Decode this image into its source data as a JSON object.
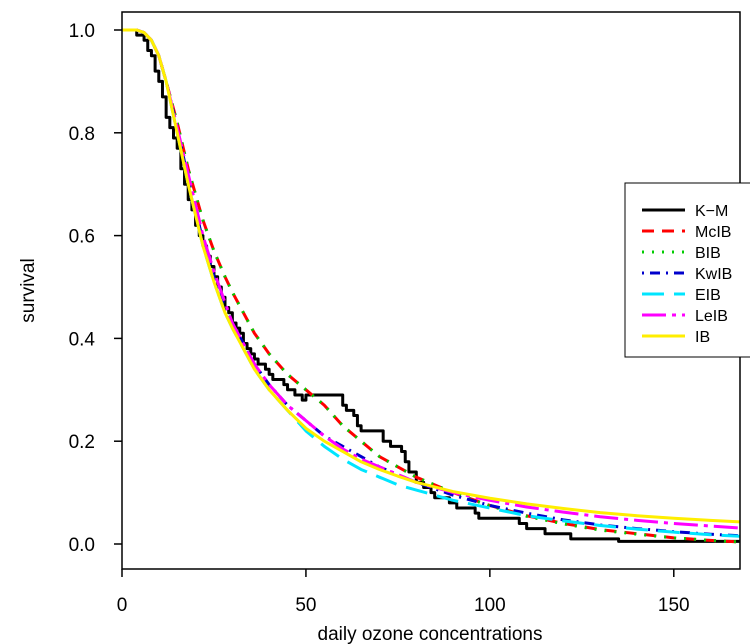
{
  "chart_data": {
    "type": "line",
    "title": "",
    "xlabel": "daily ozone concentrations",
    "ylabel": "survival",
    "xlim": [
      0,
      168
    ],
    "ylim": [
      0,
      1.0
    ],
    "x_ticks": [
      0,
      50,
      100,
      150
    ],
    "y_ticks": [
      0.0,
      0.2,
      0.4,
      0.6,
      0.8,
      1.0
    ],
    "x_tick_labels": [
      "0",
      "50",
      "100",
      "150"
    ],
    "y_tick_labels": [
      "0.0",
      "0.2",
      "0.4",
      "0.6",
      "0.8",
      "1.0"
    ],
    "grid": false,
    "legend_position": "right",
    "series": [
      {
        "name": "K−M",
        "color": "#000000",
        "dash": "solid",
        "step": true,
        "x": [
          0,
          4,
          6,
          7,
          8,
          9,
          10,
          11,
          12,
          13,
          14,
          15,
          16,
          17,
          18,
          19,
          20,
          21,
          22,
          23,
          24,
          25,
          26,
          27,
          28,
          29,
          30,
          31,
          32,
          33,
          34,
          35,
          36,
          37,
          39,
          40,
          41,
          44,
          45,
          46,
          47,
          48,
          49,
          50,
          52,
          55,
          59,
          60,
          61,
          63,
          64,
          65,
          66,
          67,
          71,
          73,
          76,
          77,
          78,
          80,
          82,
          84,
          85,
          89,
          91,
          96,
          97,
          108,
          110,
          115,
          118,
          122,
          135,
          168
        ],
        "y": [
          1.0,
          0.99,
          0.98,
          0.96,
          0.95,
          0.92,
          0.9,
          0.87,
          0.83,
          0.81,
          0.79,
          0.77,
          0.73,
          0.7,
          0.67,
          0.65,
          0.62,
          0.6,
          0.58,
          0.56,
          0.54,
          0.52,
          0.5,
          0.48,
          0.46,
          0.45,
          0.43,
          0.42,
          0.41,
          0.39,
          0.38,
          0.37,
          0.36,
          0.35,
          0.34,
          0.33,
          0.32,
          0.31,
          0.3,
          0.3,
          0.29,
          0.29,
          0.28,
          0.29,
          0.29,
          0.29,
          0.29,
          0.27,
          0.26,
          0.25,
          0.23,
          0.22,
          0.22,
          0.22,
          0.2,
          0.19,
          0.18,
          0.16,
          0.14,
          0.12,
          0.11,
          0.1,
          0.09,
          0.08,
          0.07,
          0.06,
          0.05,
          0.04,
          0.03,
          0.02,
          0.02,
          0.01,
          0.005,
          0.005
        ]
      },
      {
        "name": "McIB",
        "color": "#ff0000",
        "dash": "12,8",
        "x": [
          0,
          4,
          6,
          8,
          10,
          12,
          15,
          18,
          20,
          22,
          25,
          28,
          30,
          33,
          36,
          40,
          45,
          50,
          55,
          60,
          65,
          70,
          75,
          80,
          90,
          100,
          110,
          120,
          130,
          140,
          150,
          160,
          168
        ],
        "y": [
          1.0,
          1.0,
          0.995,
          0.98,
          0.95,
          0.9,
          0.82,
          0.73,
          0.68,
          0.63,
          0.57,
          0.52,
          0.49,
          0.45,
          0.41,
          0.37,
          0.33,
          0.3,
          0.27,
          0.23,
          0.2,
          0.17,
          0.15,
          0.13,
          0.1,
          0.075,
          0.055,
          0.04,
          0.028,
          0.02,
          0.012,
          0.007,
          0.004
        ]
      },
      {
        "name": "BIB",
        "color": "#00cc00",
        "dash": "2,8",
        "x": [
          0,
          4,
          6,
          8,
          10,
          12,
          15,
          18,
          20,
          22,
          25,
          28,
          30,
          33,
          36,
          40,
          45,
          50,
          55,
          60,
          65,
          70,
          75,
          80,
          90,
          100,
          110,
          120,
          130,
          140,
          150,
          160,
          168
        ],
        "y": [
          1.0,
          1.0,
          0.995,
          0.98,
          0.95,
          0.9,
          0.82,
          0.73,
          0.68,
          0.63,
          0.57,
          0.52,
          0.49,
          0.45,
          0.41,
          0.37,
          0.33,
          0.3,
          0.27,
          0.23,
          0.2,
          0.17,
          0.15,
          0.13,
          0.1,
          0.074,
          0.054,
          0.039,
          0.027,
          0.019,
          0.012,
          0.007,
          0.004
        ]
      },
      {
        "name": "KwIB",
        "color": "#0000cc",
        "dash": "2,6,10,6",
        "x": [
          0,
          4,
          6,
          8,
          10,
          12,
          15,
          18,
          20,
          22,
          25,
          28,
          30,
          33,
          36,
          40,
          45,
          50,
          55,
          60,
          65,
          70,
          75,
          80,
          90,
          100,
          110,
          120,
          130,
          140,
          150,
          160,
          168
        ],
        "y": [
          1.0,
          1.0,
          0.995,
          0.98,
          0.95,
          0.9,
          0.81,
          0.71,
          0.65,
          0.59,
          0.52,
          0.46,
          0.43,
          0.39,
          0.35,
          0.31,
          0.27,
          0.24,
          0.21,
          0.19,
          0.17,
          0.15,
          0.135,
          0.12,
          0.095,
          0.075,
          0.06,
          0.047,
          0.037,
          0.03,
          0.024,
          0.019,
          0.016
        ]
      },
      {
        "name": "EIB",
        "color": "#00e5ff",
        "dash": "22,10",
        "x": [
          0,
          4,
          6,
          8,
          10,
          12,
          15,
          18,
          20,
          22,
          25,
          28,
          30,
          33,
          36,
          40,
          45,
          50,
          55,
          60,
          65,
          70,
          75,
          80,
          90,
          100,
          110,
          120,
          130,
          140,
          150,
          160,
          168
        ],
        "y": [
          1.0,
          1.0,
          0.995,
          0.98,
          0.95,
          0.9,
          0.8,
          0.7,
          0.64,
          0.58,
          0.51,
          0.45,
          0.42,
          0.38,
          0.34,
          0.3,
          0.26,
          0.22,
          0.19,
          0.165,
          0.145,
          0.13,
          0.115,
          0.105,
          0.085,
          0.07,
          0.055,
          0.045,
          0.036,
          0.029,
          0.023,
          0.018,
          0.015
        ]
      },
      {
        "name": "LeIB",
        "color": "#ff00ff",
        "dash": "24,6,4,6",
        "x": [
          0,
          4,
          6,
          8,
          10,
          12,
          15,
          18,
          20,
          22,
          25,
          28,
          30,
          33,
          36,
          40,
          45,
          50,
          55,
          60,
          65,
          70,
          75,
          80,
          90,
          100,
          110,
          120,
          130,
          140,
          150,
          160,
          168
        ],
        "y": [
          1.0,
          1.0,
          0.995,
          0.98,
          0.95,
          0.9,
          0.81,
          0.72,
          0.66,
          0.6,
          0.53,
          0.47,
          0.43,
          0.39,
          0.35,
          0.31,
          0.27,
          0.24,
          0.21,
          0.185,
          0.165,
          0.15,
          0.135,
          0.12,
          0.1,
          0.085,
          0.072,
          0.062,
          0.053,
          0.046,
          0.04,
          0.035,
          0.031
        ]
      },
      {
        "name": "IB",
        "color": "#ffee00",
        "dash": "solid",
        "x": [
          0,
          4,
          6,
          8,
          10,
          12,
          15,
          18,
          20,
          22,
          25,
          28,
          30,
          33,
          36,
          40,
          45,
          50,
          55,
          60,
          65,
          70,
          75,
          80,
          90,
          100,
          110,
          120,
          130,
          140,
          150,
          160,
          168
        ],
        "y": [
          1.0,
          1.0,
          0.995,
          0.98,
          0.95,
          0.9,
          0.8,
          0.7,
          0.64,
          0.58,
          0.51,
          0.45,
          0.42,
          0.38,
          0.34,
          0.3,
          0.26,
          0.225,
          0.2,
          0.18,
          0.16,
          0.145,
          0.132,
          0.12,
          0.102,
          0.089,
          0.078,
          0.069,
          0.061,
          0.055,
          0.05,
          0.046,
          0.043
        ]
      }
    ]
  }
}
